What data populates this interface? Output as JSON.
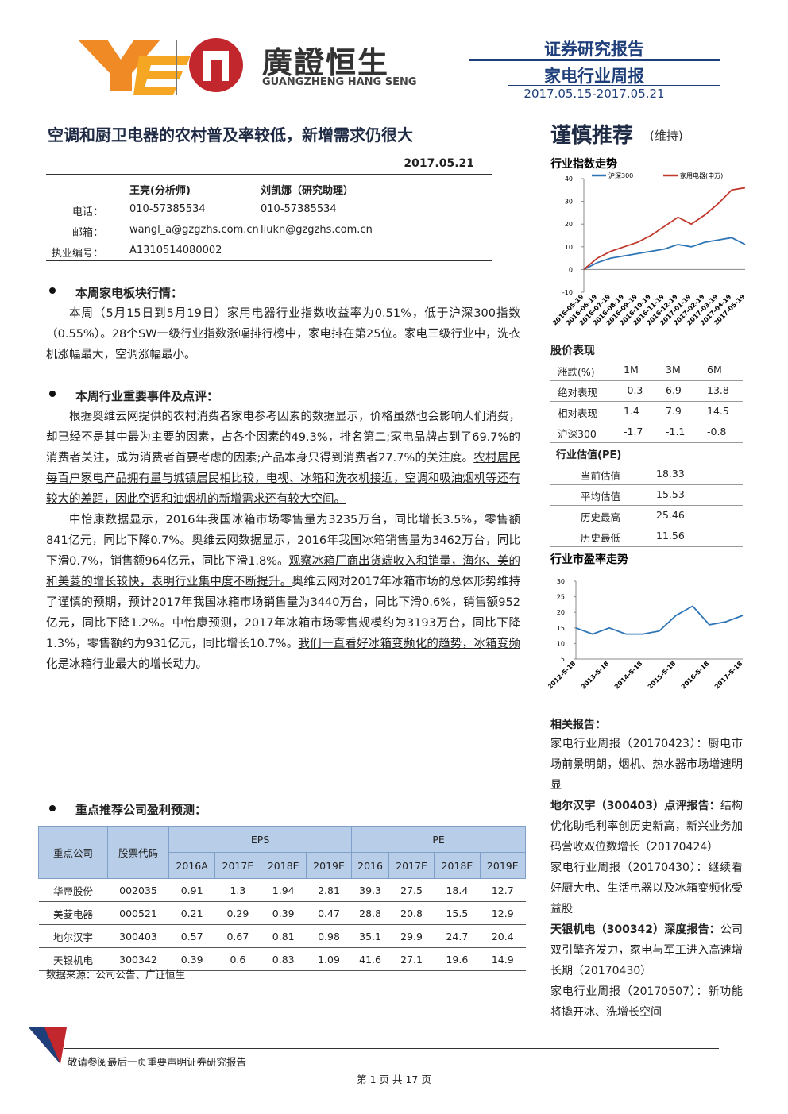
{
  "header": {
    "logo_cn": "廣證恒生",
    "logo_en": "GUANGZHENG HANG SENG",
    "report_type": "证券研究报告",
    "report_name": "家电行业周报",
    "period": "2017.05.15-2017.05.21"
  },
  "title": "空调和厨卫电器的农村普及率较低，新增需求仍很大",
  "date": "2017.05.21",
  "rating": {
    "text": "谨慎推荐",
    "note": "(维持)"
  },
  "analysts": {
    "names": [
      "王亮(分析师)",
      "刘凯娜（研究助理）"
    ],
    "rows": [
      [
        "电话：",
        "010-57385534",
        "010-57385534"
      ],
      [
        "邮箱：",
        "wangl_a@gzgzhs.com.cn",
        "liukn@gzgzhs.com.cn"
      ],
      [
        "执业编号：",
        "A1310514080002"
      ]
    ]
  },
  "sections": [
    {
      "heading": "本周家电板块行情：",
      "paragraphs": [
        [
          {
            "text": "本周（5月15日到5月19日）家用电器行业指数收益率为0.51%，低于沪深300指数（0.55%）。28个SW一级行业指数涨幅排行榜中，家电排在第25位。家电三级行业中，洗衣机涨幅最大，空调涨幅最小。"
          }
        ]
      ]
    },
    {
      "heading": "本周行业重要事件及点评：",
      "paragraphs": [
        [
          {
            "text": "根据奥维云网提供的农村消费者家电参考因素的数据显示，价格虽然也会影响人们消费，却已经不是其中最为主要的因素，占各个因素的49.3%，排名第二;家电品牌占到了69.7%的消费者关注，成为消费者首要考虑的因素;产品本身只得到消费者27.7%的关注度。"
          },
          {
            "text": "农村居民每百户家电产品拥有量与城镇居民相比较，电视、冰箱和洗衣机接近，空调和吸油烟机等还有较大的差距，因此空调和油烟机的新增需求还有较大空间。",
            "u": true
          }
        ],
        [
          {
            "text": "中怡康数据显示，2016年我国冰箱市场零售量为3235万台，同比增长3.5%，零售额841亿元，同比下降0.7%。奥维云网数据显示，2016年我国冰箱销售量为3462万台，同比下滑0.7%，销售额964亿元，同比下滑1.8%。"
          },
          {
            "text": "观察冰箱厂商出货端收入和销量，海尔、美的和美菱的增长较快，表明行业集中度不断提升。",
            "u": true
          },
          {
            "text": "奥维云网对2017年冰箱市场的总体形势维持了谨慎的预期，预计2017年我国冰箱市场销售量为3440万台，同比下滑0.6%，销售额952亿元，同比下降1.2%。中怡康预测，2017年冰箱市场零售规模约为3193万台，同比下降1.3%，零售额约为931亿元，同比增长10.7%。"
          },
          {
            "text": "我们一直看好冰箱变频化的趋势，冰箱变频化是冰箱行业最大的增长动力。",
            "u": true
          }
        ]
      ]
    }
  ],
  "forecast": {
    "heading": "重点推荐公司盈利预测：",
    "head": [
      "重点公司",
      "股票代码",
      "EPS",
      "PE"
    ],
    "years": [
      "2016A",
      "2017E",
      "2018E",
      "2019E",
      "2016",
      "2017E",
      "2018E",
      "2019E"
    ],
    "rows": [
      [
        "华帝股份",
        "002035",
        "0.91",
        "1.3",
        "1.94",
        "2.81",
        "39.3",
        "27.5",
        "18.4",
        "12.7"
      ],
      [
        "美菱电器",
        "000521",
        "0.21",
        "0.29",
        "0.39",
        "0.47",
        "28.8",
        "20.8",
        "15.5",
        "12.9"
      ],
      [
        "地尔汉宇",
        "300403",
        "0.57",
        "0.67",
        "0.81",
        "0.98",
        "35.1",
        "29.9",
        "24.7",
        "20.4"
      ],
      [
        "天银机电",
        "300342",
        "0.39",
        "0.6",
        "0.83",
        "1.09",
        "41.6",
        "27.1",
        "19.6",
        "14.9"
      ]
    ],
    "source": "数据来源：公司公告、广证恒生"
  },
  "sidebar": {
    "perf_title": "股价表现",
    "perf": {
      "head": [
        "涨跌(%)",
        "1M",
        "3M",
        "6M"
      ],
      "rows": [
        [
          "绝对表现",
          "-0.3",
          "6.9",
          "13.8"
        ],
        [
          "相对表现",
          "1.4",
          "7.9",
          "14.5"
        ],
        [
          "沪深300",
          "-1.7",
          "-1.1",
          "-0.8"
        ]
      ]
    },
    "val_title": "行业估值(PE)",
    "val_rows": [
      [
        "当前估值",
        "18.33"
      ],
      [
        "平均估值",
        "15.53"
      ],
      [
        "历史最高",
        "25.46"
      ],
      [
        "历史最低",
        "11.56"
      ]
    ],
    "related_title": "相关报告：",
    "related": [
      [
        {
          "text": "家电行业周报（20170423）：厨电市场前景明朗，烟机、热水器市场增速明显"
        }
      ],
      [
        {
          "text": "地尔汉宇（300403）点评报告：",
          "b": true
        },
        {
          "text": "结构优化助毛利率创历史新高，新兴业务加码营收双位数增长（20170424）"
        }
      ],
      [
        {
          "text": "家电行业周报（20170430）：继续看好厨大电、生活电器以及冰箱变频化受益股"
        }
      ],
      [
        {
          "text": "天银机电（300342）深度报告：",
          "b": true
        },
        {
          "text": "公司双引擎齐发力，家电与军工进入高速增长期（20170430）"
        }
      ],
      [
        {
          "text": "家电行业周报（20170507）：新功能将撬开冰、洗增长空间"
        }
      ]
    ]
  },
  "chart_data": [
    {
      "type": "line",
      "title": "行业指数走势",
      "categories": [
        "2016-05-19",
        "2016-06-19",
        "2016-07-19",
        "2016-08-19",
        "2016-09-19",
        "2016-10-19",
        "2016-11-19",
        "2016-12-19",
        "2017-01-19",
        "2017-02-19",
        "2017-03-19",
        "2017-04-19",
        "2017-05-19"
      ],
      "series": [
        {
          "name": "沪深300",
          "color": "#2e75b6",
          "values": [
            0,
            3,
            5,
            6,
            7,
            8,
            9,
            11,
            10,
            12,
            13,
            14,
            11
          ]
        },
        {
          "name": "家用电器(申万)",
          "color": "#c0392b",
          "values": [
            0,
            5,
            8,
            10,
            12,
            15,
            19,
            23,
            20,
            24,
            29,
            35,
            36
          ]
        }
      ],
      "ylim": [
        -10,
        40
      ],
      "yticks": [
        -10,
        0,
        10,
        20,
        30,
        40
      ],
      "grid": false,
      "legend": "top"
    },
    {
      "type": "line",
      "title": "行业市盈率走势",
      "categories": [
        "2012-5-18",
        null,
        "2013-5-18",
        null,
        "2014-5-18",
        null,
        "2015-5-18",
        null,
        "2016-5-18",
        null,
        "2017-5-18"
      ],
      "values": [
        15,
        13,
        15,
        13,
        13,
        14,
        19,
        22,
        16,
        17,
        19
      ],
      "color": "#2e75b6",
      "ylim": [
        5,
        30
      ],
      "yticks": [
        5,
        10,
        15,
        20,
        25,
        30
      ],
      "grid": false
    }
  ],
  "footer": {
    "disclaimer": "敬请参阅最后一页重要声明证券研究报告",
    "page": "第 1 页 共 17 页"
  }
}
